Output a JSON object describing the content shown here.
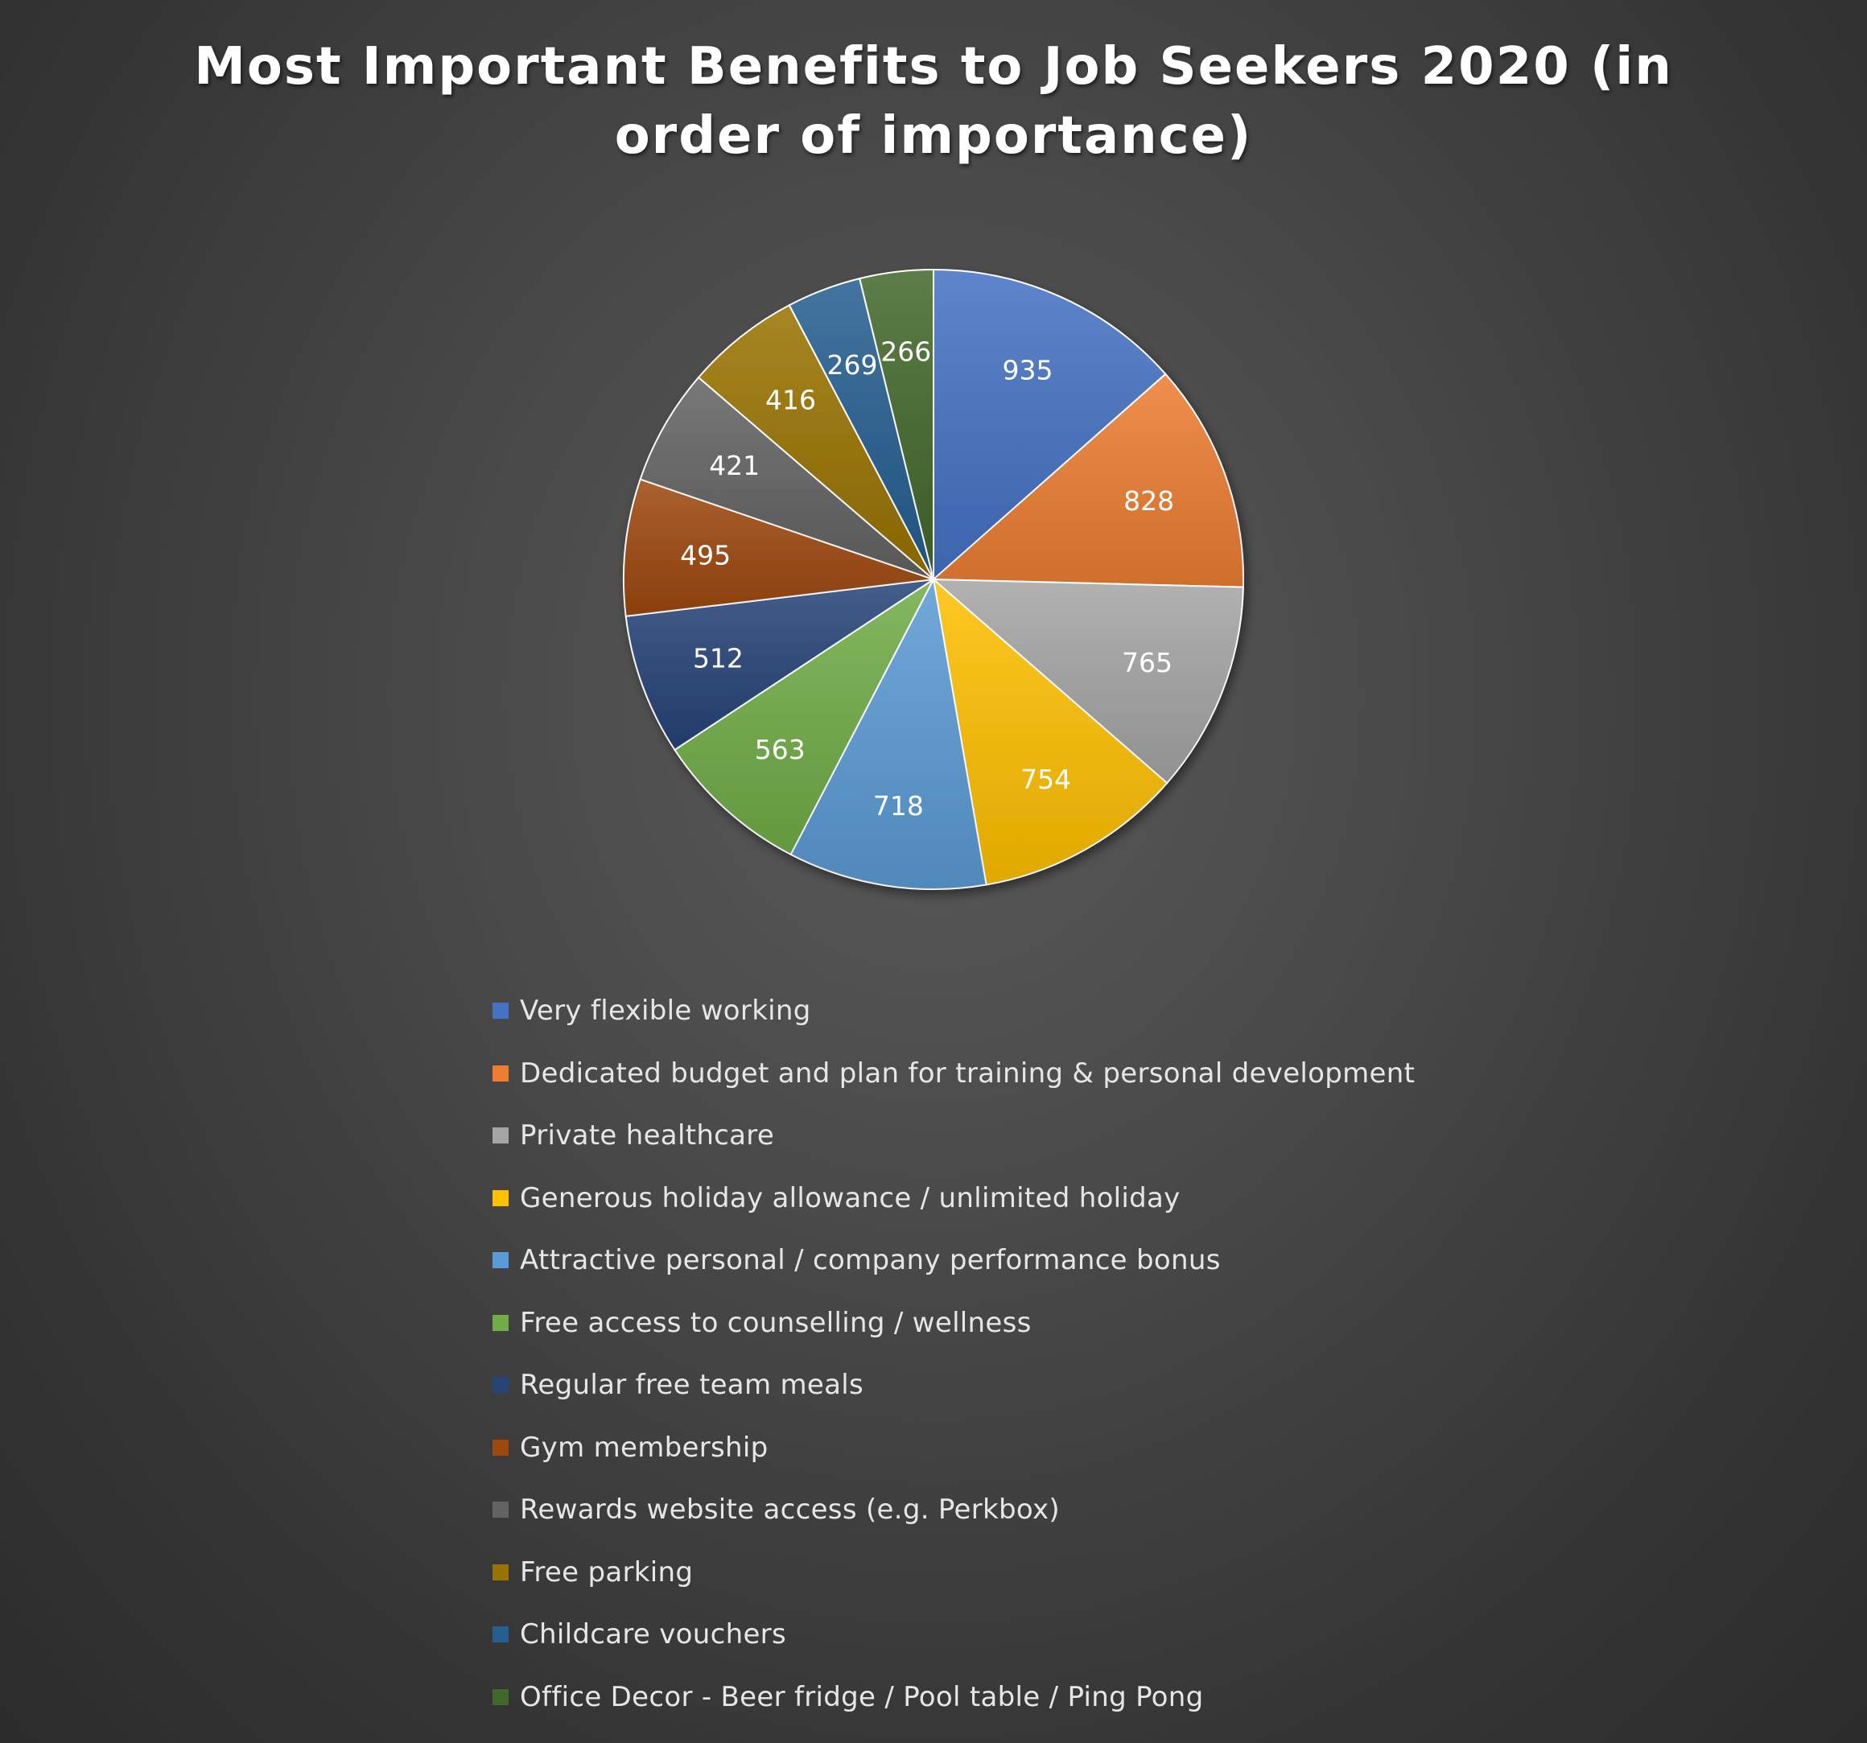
{
  "chart_data": {
    "type": "pie",
    "title": "Most Important Benefits to Job Seekers 2020 (in order of importance)",
    "legend_placement": "bottom",
    "categories": [
      "Very flexible working",
      "Dedicated budget and plan for training & personal development",
      "Private healthcare",
      "Generous holiday allowance / unlimited holiday",
      "Attractive personal / company performance bonus",
      "Free access to counselling / wellness",
      "Regular free team meals",
      "Gym membership",
      "Rewards website access (e.g. Perkbox)",
      "Free parking",
      "Childcare vouchers",
      "Office Decor - Beer fridge / Pool table / Ping Pong"
    ],
    "values": [
      935,
      828,
      765,
      754,
      718,
      563,
      512,
      495,
      421,
      416,
      269,
      266
    ],
    "colors": [
      "#4472c4",
      "#ed7d31",
      "#a5a5a5",
      "#ffc000",
      "#5b9bd5",
      "#70ad47",
      "#264478",
      "#9e480e",
      "#636363",
      "#997300",
      "#255e91",
      "#43682b"
    ],
    "data_labels": true
  }
}
